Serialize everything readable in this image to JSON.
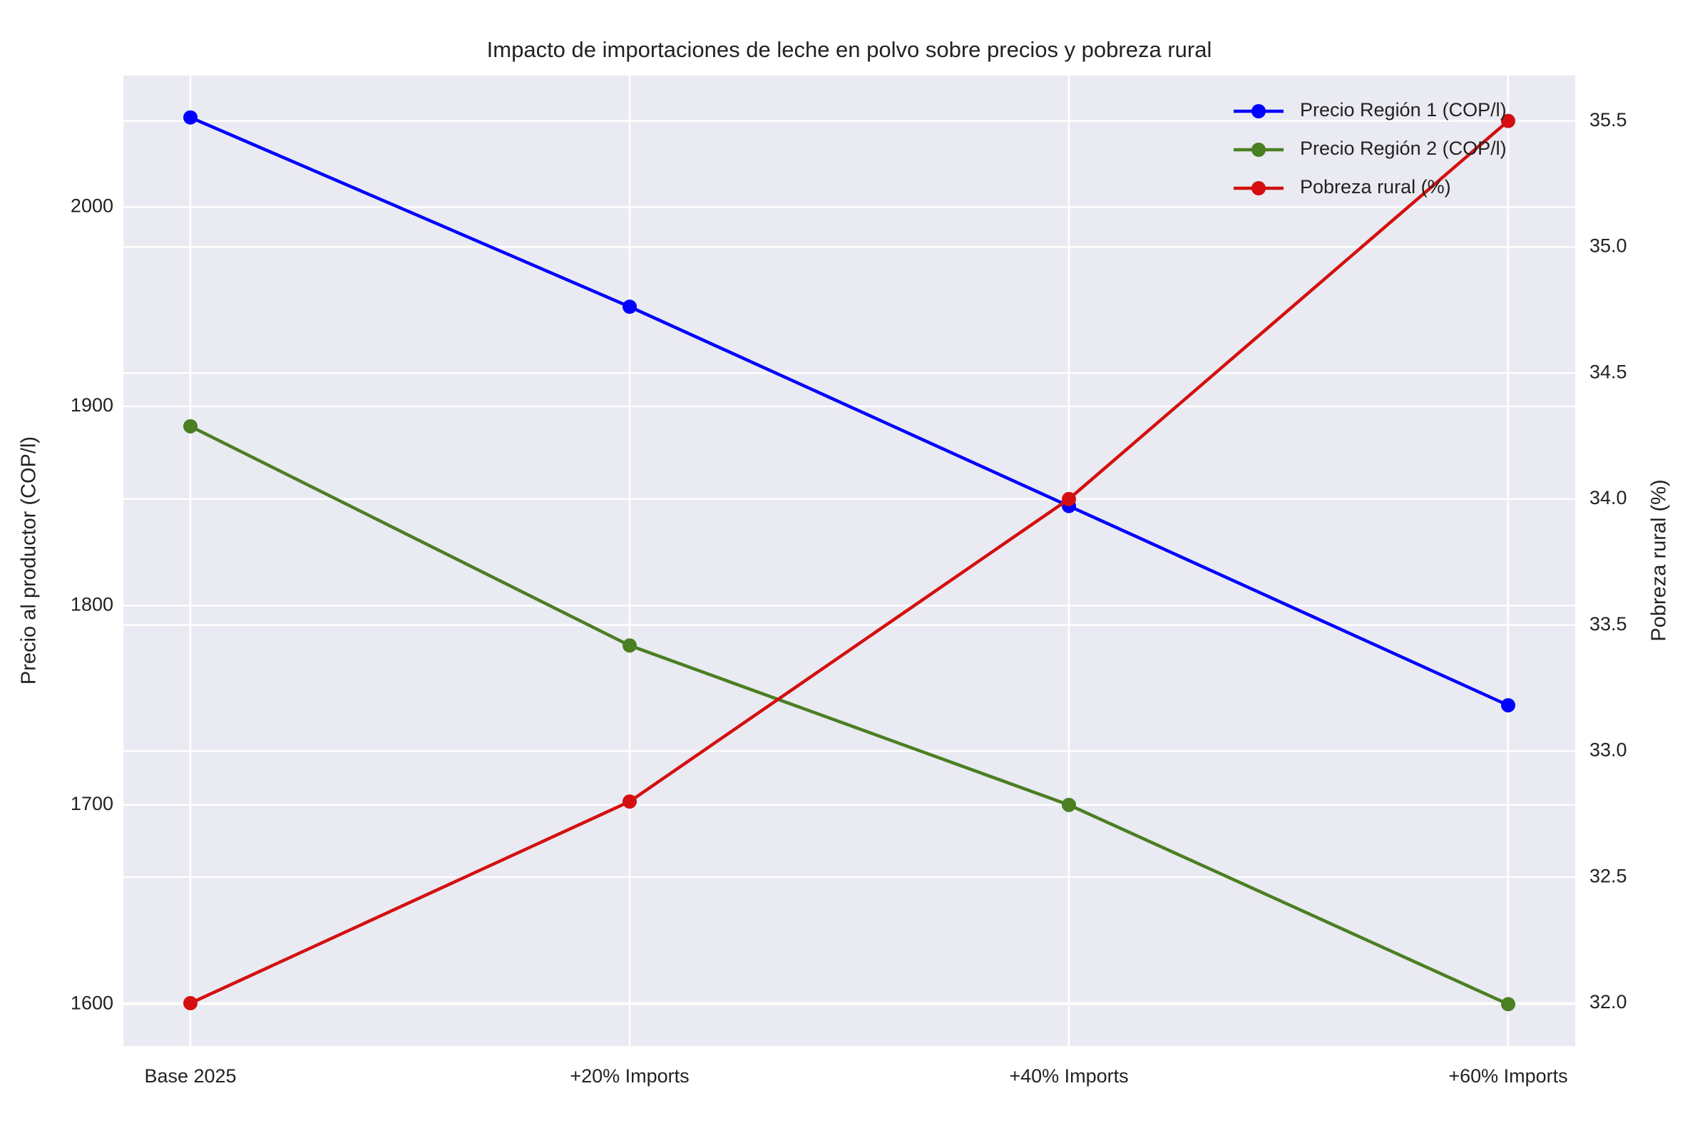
{
  "chart_data": {
    "type": "line",
    "title": "Impacto de importaciones de leche en polvo sobre precios y pobreza rural",
    "categories": [
      "Base 2025",
      "+20% Imports",
      "+40% Imports",
      "+60% Imports"
    ],
    "series": [
      {
        "name": "Precio Región 1 (COP/l)",
        "color": "#0000ff",
        "values": [
          2045,
          1950,
          1850,
          1750
        ]
      },
      {
        "name": "Precio Región 2 (COP/l)",
        "color": "#4a7f22",
        "values": [
          1890,
          1780,
          1700,
          1600
        ]
      },
      {
        "name": "Pobreza rural (%)",
        "color": "#d40f0f",
        "values": [
          32.0,
          32.8,
          34.0,
          35.5
        ],
        "axis": "y2"
      }
    ],
    "ylabel": "Precio al productor (COP/l)",
    "y2label": "Pobreza rural (%)",
    "ylim": [
      1579,
      2066
    ],
    "yticks": [
      1600,
      1700,
      1800,
      1900,
      2000
    ],
    "y2lim": [
      31.83,
      35.68
    ],
    "y2ticks": [
      {
        "value": 32,
        "label": "32.0"
      },
      32.5,
      {
        "value": 33,
        "label": "33.0"
      },
      33.5,
      {
        "value": 34,
        "label": "34.0"
      },
      34.5,
      {
        "value": 35,
        "label": "35.0"
      },
      35.5
    ],
    "grid": true,
    "legend": "upper right"
  }
}
